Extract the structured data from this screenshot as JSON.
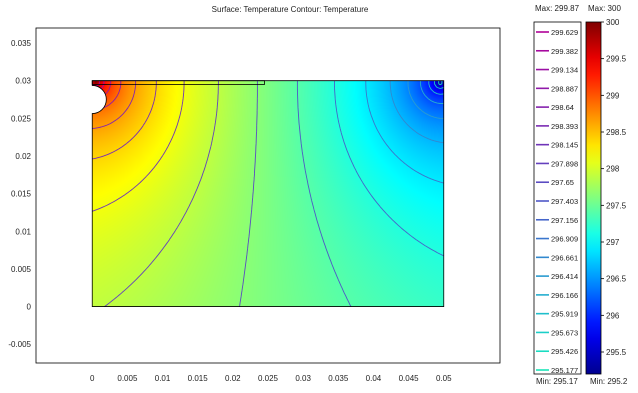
{
  "chart_data": {
    "type": "heatmap",
    "title": "Surface: Temperature   Contour: Temperature",
    "x_ticks": [
      "0",
      "0.005",
      "0.01",
      "0.015",
      "0.02",
      "0.025",
      "0.03",
      "0.035",
      "0.04",
      "0.045",
      "0.05"
    ],
    "y_ticks": [
      "0.035",
      "0.03",
      "0.025",
      "0.02",
      "0.015",
      "0.01",
      "0.005",
      "0",
      "-0.005"
    ],
    "xlim": [
      -0.008,
      0.058
    ],
    "ylim": [
      -0.0075,
      0.037
    ],
    "domain": {
      "x": [
        0,
        0.05
      ],
      "y": [
        0,
        0.03
      ]
    },
    "hole": {
      "cx": 0,
      "cy": 0.0275,
      "r": 0.002
    },
    "electrode": {
      "x": [
        0,
        0.0245
      ],
      "y": [
        0.0295,
        0.03
      ]
    },
    "hot_spot": {
      "x": 0.0005,
      "y": 0.0298,
      "value": 300
    },
    "cold_spot": {
      "x": 0.0495,
      "y": 0.0298,
      "value": 295.17
    },
    "contour_legend": {
      "max_label": "Max: 299.87",
      "min_label": "Min: 295.17",
      "values": [
        "299.629",
        "299.382",
        "299.134",
        "298.887",
        "298.64",
        "298.393",
        "298.145",
        "297.898",
        "297.65",
        "297.403",
        "297.156",
        "296.909",
        "296.661",
        "296.414",
        "296.166",
        "295.919",
        "295.673",
        "295.426",
        "295.177"
      ],
      "colors": [
        "#b00098",
        "#a6089e",
        "#9b10a4",
        "#9019a9",
        "#8522ae",
        "#7a2bb3",
        "#6f34b8",
        "#6440bd",
        "#5a4bc2",
        "#4f58c6",
        "#4565ca",
        "#3a76cd",
        "#3188cf",
        "#2a9bd0",
        "#24aecf",
        "#1fbfcc",
        "#1bcfc8",
        "#19dcc1",
        "#1ae4b8"
      ]
    },
    "surface_colorbar": {
      "max_label": "Max: 300",
      "min_label": "Min: 295.2",
      "tick_labels": [
        "300",
        "299.5",
        "299",
        "298.5",
        "298",
        "297.5",
        "297",
        "296.5",
        "296",
        "295.5"
      ],
      "tick_values": [
        300,
        299.5,
        299,
        298.5,
        298,
        297.5,
        297,
        296.5,
        296,
        295.5
      ],
      "range": [
        295.2,
        300
      ]
    },
    "contour_levels": [
      299.629,
      299.382,
      299.134,
      298.887,
      298.64,
      298.393,
      298.145,
      297.898,
      297.65,
      297.403,
      297.156,
      296.909,
      296.661,
      296.414,
      296.166,
      295.919,
      295.673,
      295.426,
      295.177
    ]
  }
}
